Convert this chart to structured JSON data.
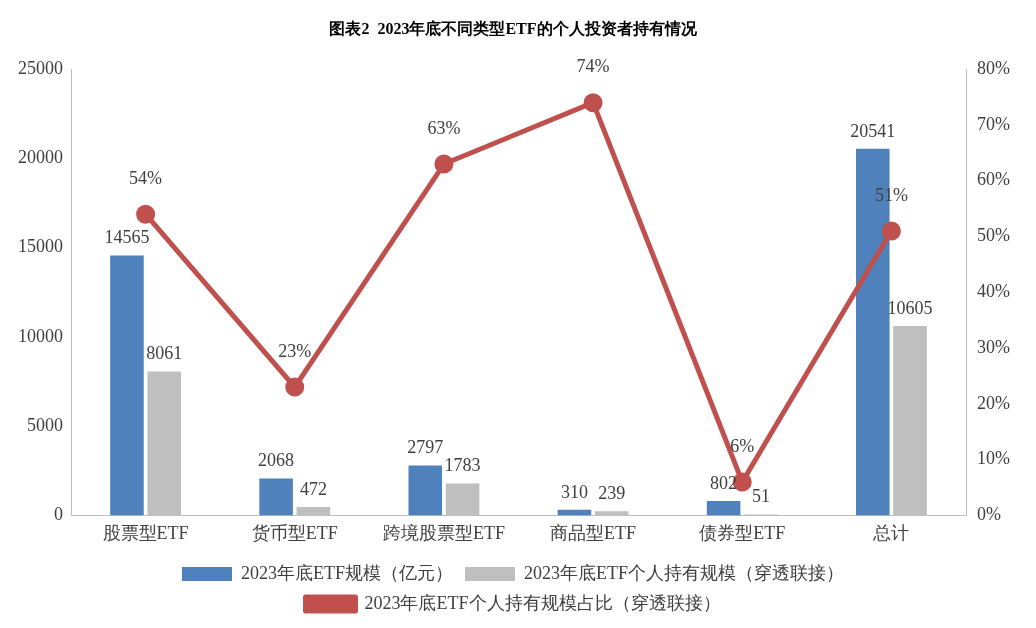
{
  "chart_data": {
    "type": "bar",
    "title": "图表2  2023年底不同类型ETF的个人投资者持有情况",
    "categories": [
      "股票型ETF",
      "货币型ETF",
      "跨境股票型ETF",
      "商品型ETF",
      "债券型ETF",
      "总计"
    ],
    "series": [
      {
        "name": "2023年底ETF规模（亿元）",
        "color": "#4f81bd",
        "values": [
          14565,
          2068,
          2797,
          310,
          802,
          20541
        ],
        "value_labels": [
          "14565",
          "2068",
          "2797",
          "310",
          "802",
          "20541"
        ]
      },
      {
        "name": "2023年底ETF个人持有规模（穿透联接）",
        "color": "#bfbfbf",
        "values": [
          8061,
          472,
          1783,
          239,
          51,
          10605
        ],
        "value_labels": [
          "8061",
          "472",
          "1783",
          "239",
          "51",
          "10605"
        ]
      },
      {
        "name": "2023年底ETF个人持有规模占比（穿透联接）",
        "type": "line",
        "axis": "y2",
        "color": "#c0504d",
        "marker": "circle",
        "line_style": "solid",
        "values": [
          54,
          23,
          63,
          74,
          6,
          51
        ],
        "value_labels": [
          "54%",
          "23%",
          "63%",
          "74%",
          "6%",
          "51%"
        ]
      }
    ],
    "ylim": [
      0,
      25000
    ],
    "yticks": [
      0,
      5000,
      10000,
      15000,
      20000,
      25000
    ],
    "y2lim": [
      0,
      80
    ],
    "y2ticks": [
      {
        "value": 0,
        "label": "0%"
      },
      {
        "value": 10,
        "label": "10%"
      },
      {
        "value": 20,
        "label": "20%"
      },
      {
        "value": 30,
        "label": "30%"
      },
      {
        "value": 40,
        "label": "40%"
      },
      {
        "value": 50,
        "label": "50%"
      },
      {
        "value": 60,
        "label": "60%"
      },
      {
        "value": 70,
        "label": "70%"
      },
      {
        "value": 80,
        "label": "80%"
      }
    ],
    "grid": false,
    "legend": "bottom"
  }
}
